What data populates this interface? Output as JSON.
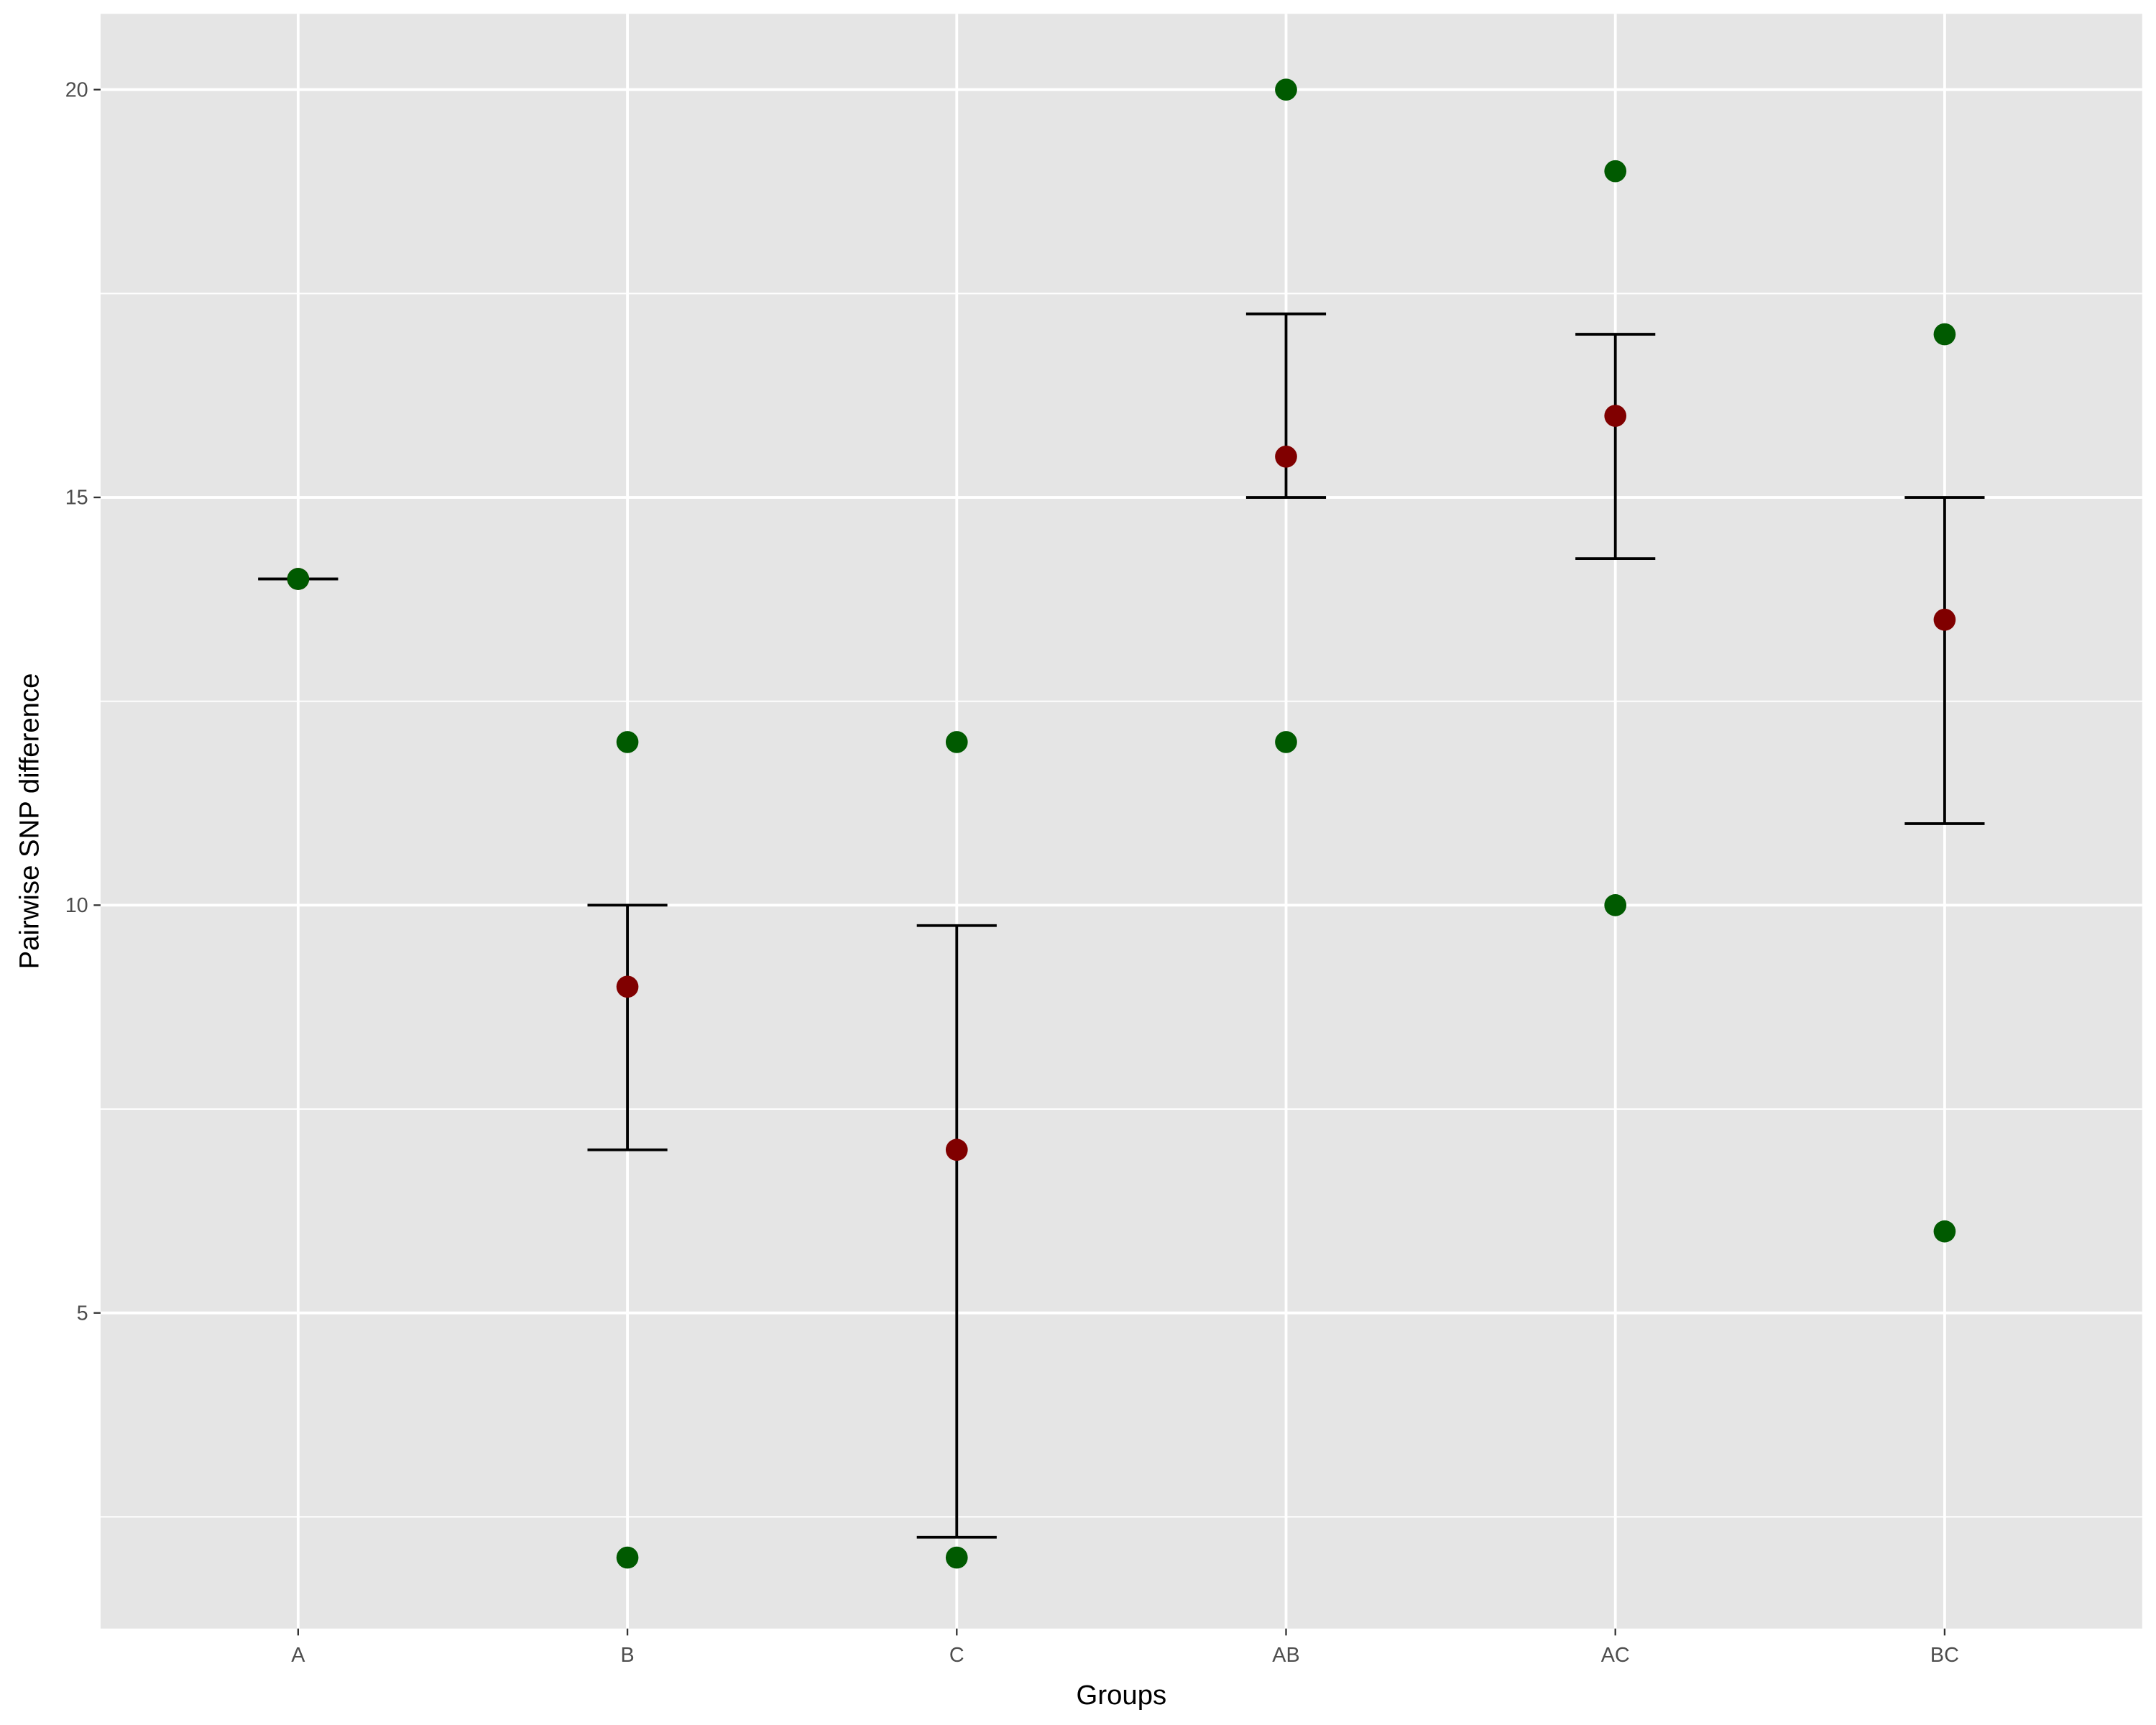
{
  "chart_data": {
    "type": "scatter",
    "title": "",
    "xlabel": "Groups",
    "ylabel": "Pairwise SNP difference",
    "categories": [
      "A",
      "B",
      "C",
      "AB",
      "AC",
      "BC"
    ],
    "ylim": [
      1.13,
      20.93
    ],
    "yticks": [
      5,
      10,
      15,
      20
    ],
    "grid": true,
    "points": [
      {
        "group": "A",
        "values": [
          14
        ]
      },
      {
        "group": "B",
        "values": [
          12,
          2
        ]
      },
      {
        "group": "C",
        "values": [
          12,
          2
        ]
      },
      {
        "group": "AB",
        "values": [
          20,
          12
        ]
      },
      {
        "group": "AC",
        "values": [
          19,
          10
        ]
      },
      {
        "group": "BC",
        "values": [
          17,
          6
        ]
      }
    ],
    "means": [
      14,
      9,
      7,
      15.5,
      16,
      13.5
    ],
    "error_bars": [
      {
        "group": "A",
        "low": 14,
        "high": 14
      },
      {
        "group": "B",
        "low": 7,
        "high": 10
      },
      {
        "group": "C",
        "low": 2.25,
        "high": 9.75
      },
      {
        "group": "AB",
        "low": 15,
        "high": 17.25
      },
      {
        "group": "AC",
        "low": 14.25,
        "high": 17
      },
      {
        "group": "BC",
        "low": 11,
        "high": 15
      }
    ],
    "colors": {
      "points": "#005a00",
      "mean": "#800000",
      "panel": "#e5e5e5",
      "grid": "#ffffff",
      "errorbar": "#000000"
    }
  }
}
